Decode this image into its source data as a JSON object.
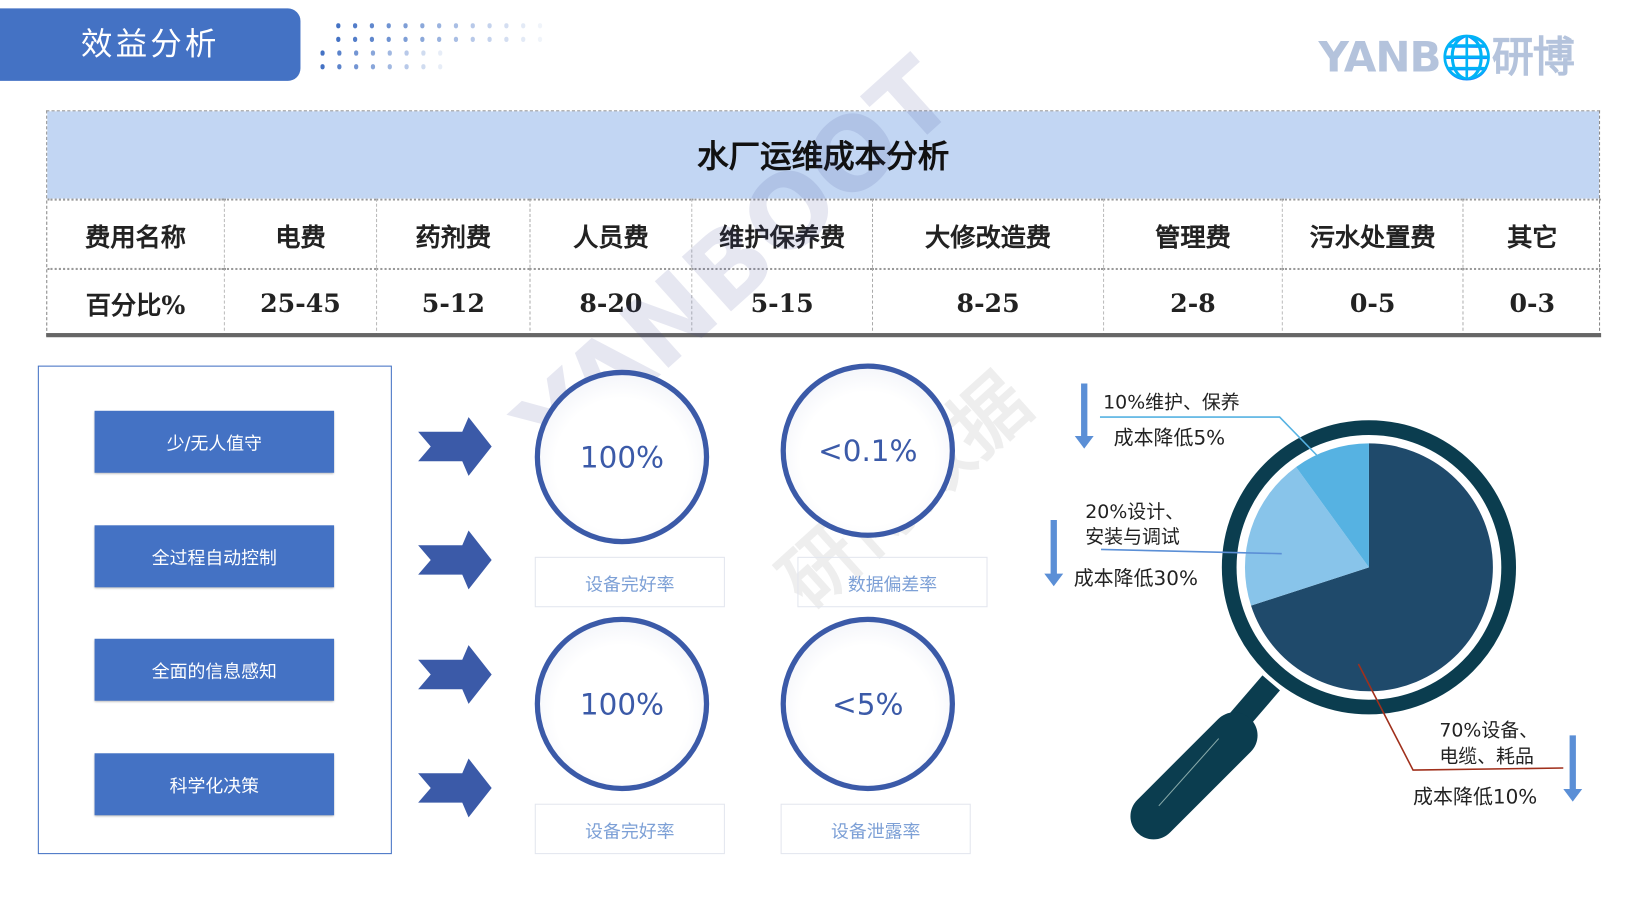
{
  "header": {
    "title": "效益分析",
    "logo_text": "YANB",
    "logo_cn": "研博"
  },
  "table": {
    "title": "水厂运维成本分析",
    "row_headers": [
      "费用名称",
      "百分比%"
    ],
    "columns": [
      "电费",
      "药剂费",
      "人员费",
      "维护保养费",
      "大修改造费",
      "管理费",
      "污水处置费",
      "其它"
    ],
    "values": [
      "25-45",
      "5-12",
      "8-20",
      "5-15",
      "8-25",
      "2-8",
      "0-5",
      "0-3"
    ]
  },
  "features": [
    "少/无人值守",
    "全过程自动控制",
    "全面的信息感知",
    "科学化决策"
  ],
  "metrics": [
    {
      "value": "100%",
      "label": "设备完好率"
    },
    {
      "value": "<0.1%",
      "label": "数据偏差率"
    },
    {
      "value": "100%",
      "label": "设备完好率"
    },
    {
      "value": "<5%",
      "label": "设备泄露率"
    }
  ],
  "watermark": {
    "text": "YANBOOT",
    "cn": "研博数据"
  },
  "pie": {
    "slices": [
      {
        "value": 70,
        "color": "#1f4a6b"
      },
      {
        "value": 20,
        "color": "#88c4ea"
      },
      {
        "value": 10,
        "color": "#56b2e2"
      }
    ],
    "lens_color": "#0b3d4f"
  },
  "callouts": [
    {
      "line1": "10%维护、保养",
      "line2": "",
      "saving": "成本降低5%"
    },
    {
      "line1": "20%设计、",
      "line2": "安装与调试",
      "saving": "成本降低30%"
    },
    {
      "line1": "70%设备、",
      "line2": "电缆、耗品",
      "saving": "成本降低10%"
    }
  ]
}
